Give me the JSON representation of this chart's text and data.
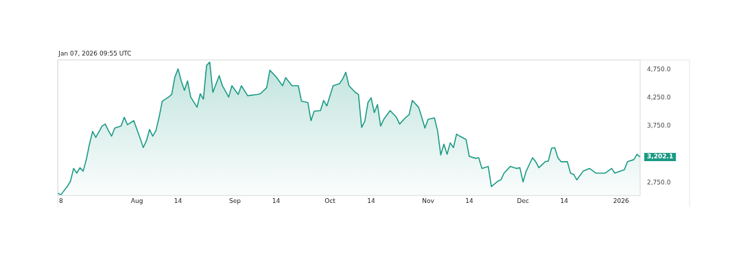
{
  "chart_data": {
    "type": "area",
    "annotations": [
      "Jan 07, 2026 09:55 UTC",
      {
        "text": "3,202.1",
        "x": "2026-01-07",
        "y": 3202.1
      }
    ],
    "x": [
      "2025-07-07",
      "2025-07-08",
      "2025-07-10",
      "2025-07-11",
      "2025-07-12",
      "2025-07-13",
      "2025-07-14",
      "2025-07-15",
      "2025-07-16",
      "2025-07-17",
      "2025-07-18",
      "2025-07-19",
      "2025-07-21",
      "2025-07-22",
      "2025-07-23",
      "2025-07-24",
      "2025-07-25",
      "2025-07-27",
      "2025-07-28",
      "2025-07-29",
      "2025-07-31",
      "2025-08-02",
      "2025-08-03",
      "2025-08-04",
      "2025-08-05",
      "2025-08-06",
      "2025-08-07",
      "2025-08-08",
      "2025-08-09",
      "2025-08-11",
      "2025-08-12",
      "2025-08-13",
      "2025-08-14",
      "2025-08-15",
      "2025-08-16",
      "2025-08-17",
      "2025-08-18",
      "2025-08-20",
      "2025-08-21",
      "2025-08-22",
      "2025-08-23",
      "2025-08-24",
      "2025-08-25",
      "2025-08-27",
      "2025-08-28",
      "2025-08-30",
      "2025-08-31",
      "2025-09-02",
      "2025-09-03",
      "2025-09-05",
      "2025-09-08",
      "2025-09-09",
      "2025-09-11",
      "2025-09-12",
      "2025-09-14",
      "2025-09-16",
      "2025-09-17",
      "2025-09-19",
      "2025-09-21",
      "2025-09-22",
      "2025-09-24",
      "2025-09-25",
      "2025-09-26",
      "2025-09-28",
      "2025-09-29",
      "2025-09-30",
      "2025-10-02",
      "2025-10-04",
      "2025-10-05",
      "2025-10-06",
      "2025-10-07",
      "2025-10-09",
      "2025-10-10",
      "2025-10-11",
      "2025-10-12",
      "2025-10-13",
      "2025-10-14",
      "2025-10-15",
      "2025-10-16",
      "2025-10-17",
      "2025-10-18",
      "2025-10-20",
      "2025-10-22",
      "2025-10-23",
      "2025-10-25",
      "2025-10-26",
      "2025-10-27",
      "2025-10-29",
      "2025-10-30",
      "2025-10-31",
      "2025-11-01",
      "2025-11-03",
      "2025-11-04",
      "2025-11-05",
      "2025-11-06",
      "2025-11-07",
      "2025-11-08",
      "2025-11-09",
      "2025-11-10",
      "2025-11-11",
      "2025-11-13",
      "2025-11-14",
      "2025-11-16",
      "2025-11-17",
      "2025-11-18",
      "2025-11-20",
      "2025-11-21",
      "2025-11-23",
      "2025-11-24",
      "2025-11-25",
      "2025-11-27",
      "2025-11-29",
      "2025-11-30",
      "2025-12-01",
      "2025-12-02",
      "2025-12-04",
      "2025-12-05",
      "2025-12-06",
      "2025-12-08",
      "2025-12-09",
      "2025-12-10",
      "2025-12-11",
      "2025-12-12",
      "2025-12-13",
      "2025-12-15",
      "2025-12-16",
      "2025-12-17",
      "2025-12-18",
      "2025-12-20",
      "2025-12-22",
      "2025-12-24",
      "2025-12-27",
      "2025-12-29",
      "2025-12-30",
      "2026-01-02",
      "2026-01-03",
      "2026-01-05",
      "2026-01-06",
      "2026-01-07"
    ],
    "series": [
      {
        "color": "#1a9a84",
        "values": [
          2560,
          2536,
          2679,
          2774,
          3000,
          2917,
          3012,
          2952,
          3155,
          3429,
          3655,
          3548,
          3750,
          3786,
          3667,
          3571,
          3714,
          3750,
          3905,
          3774,
          3845,
          3536,
          3369,
          3488,
          3690,
          3571,
          3667,
          3905,
          4190,
          4262,
          4310,
          4619,
          4762,
          4548,
          4381,
          4548,
          4262,
          4083,
          4321,
          4226,
          4821,
          4881,
          4345,
          4643,
          4464,
          4262,
          4464,
          4310,
          4464,
          4286,
          4310,
          4321,
          4429,
          4738,
          4619,
          4464,
          4607,
          4464,
          4464,
          4190,
          4167,
          3845,
          4012,
          4024,
          4202,
          4107,
          4464,
          4500,
          4583,
          4702,
          4464,
          4345,
          4310,
          3726,
          3833,
          4167,
          4250,
          3988,
          4131,
          3750,
          3869,
          4024,
          3905,
          3786,
          3905,
          3952,
          4202,
          4083,
          3905,
          3714,
          3869,
          3893,
          3667,
          3238,
          3429,
          3250,
          3452,
          3369,
          3607,
          3571,
          3512,
          3214,
          3179,
          3190,
          3000,
          3036,
          2679,
          2774,
          2798,
          2917,
          3036,
          3000,
          3012,
          2762,
          2952,
          3190,
          3119,
          3012,
          3119,
          3131,
          3357,
          3369,
          3190,
          3119,
          3119,
          2917,
          2893,
          2798,
          2952,
          3000,
          2917,
          2917,
          3000,
          2917,
          2976,
          3119,
          3155,
          3250,
          3202.1
        ]
      }
    ],
    "xlim": [
      "2025-07-07",
      "2026-01-07"
    ],
    "xticks": [
      {
        "value": "2025-07-08",
        "label": "8"
      },
      {
        "value": "2025-08-01",
        "label": "Aug"
      },
      {
        "value": "2025-08-14",
        "label": "14"
      },
      {
        "value": "2025-09-01",
        "label": "Sep"
      },
      {
        "value": "2025-09-14",
        "label": "14"
      },
      {
        "value": "2025-10-01",
        "label": "Oct"
      },
      {
        "value": "2025-10-14",
        "label": "14"
      },
      {
        "value": "2025-11-01",
        "label": "Nov"
      },
      {
        "value": "2025-11-14",
        "label": "14"
      },
      {
        "value": "2025-12-01",
        "label": "Dec"
      },
      {
        "value": "2025-12-14",
        "label": "14"
      },
      {
        "value": "2026-01-01",
        "label": "2026"
      }
    ],
    "ylim": [
      2520,
      4920
    ],
    "yticks": [
      {
        "value": 2750,
        "label": "2,750.0"
      },
      {
        "value": 3750,
        "label": "3,750.0"
      },
      {
        "value": 4250,
        "label": "4,250.0"
      },
      {
        "value": 4750,
        "label": "4,750.0"
      }
    ],
    "grid": false,
    "legend": false,
    "marker": "none",
    "line_style": "solid"
  }
}
